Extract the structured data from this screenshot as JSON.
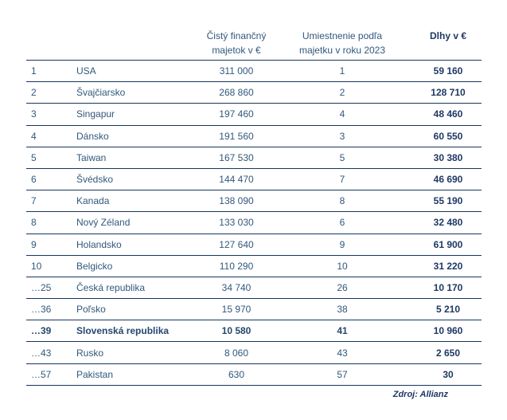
{
  "header": {
    "assets_line1": "Čistý finančný",
    "assets_line2": "majetok v €",
    "place_line1": "Umiestnenie podľa",
    "place_line2": "majetku v roku 2023",
    "debt": "Dlhy v €"
  },
  "source": "Zdroj: Allianz",
  "colors": {
    "text_regular": "#31587C",
    "text_dark_navy": "#1F3864",
    "border": "#17365D",
    "background": "#FFFFFF"
  },
  "table": {
    "rows": [
      {
        "rank": "1",
        "country": "USA",
        "assets": "311 000",
        "place": "1",
        "debt": "59 160"
      },
      {
        "rank": "2",
        "country": "Švajčiarsko",
        "assets": "268 860",
        "place": "2",
        "debt": "128 710"
      },
      {
        "rank": "3",
        "country": "Singapur",
        "assets": "197 460",
        "place": "4",
        "debt": "48 460"
      },
      {
        "rank": "4",
        "country": "Dánsko",
        "assets": "191 560",
        "place": "3",
        "debt": "60 550"
      },
      {
        "rank": "5",
        "country": "Taiwan",
        "assets": "167 530",
        "place": "5",
        "debt": "30 380"
      },
      {
        "rank": "6",
        "country": "Švédsko",
        "assets": "144 470",
        "place": "7",
        "debt": "46 690"
      },
      {
        "rank": "7",
        "country": "Kanada",
        "assets": "138 090",
        "place": "8",
        "debt": "55 190"
      },
      {
        "rank": "8",
        "country": "Nový Zéland",
        "assets": "133 030",
        "place": "6",
        "debt": "32 480"
      },
      {
        "rank": "9",
        "country": "Holandsko",
        "assets": "127 640",
        "place": "9",
        "debt": "61 900"
      },
      {
        "rank": "10",
        "country": "Belgicko",
        "assets": "110 290",
        "place": "10",
        "debt": "31 220"
      },
      {
        "rank": "…25",
        "country": "Česká republika",
        "assets": "34 740",
        "place": "26",
        "debt": "10 170"
      },
      {
        "rank": "…36",
        "country": "Poľsko",
        "assets": "15 970",
        "place": "38",
        "debt": "5 210"
      },
      {
        "rank": "…39",
        "country": "Slovenská republika",
        "assets": "10 580",
        "place": "41",
        "debt": "10 960"
      },
      {
        "rank": "…43",
        "country": "Rusko",
        "assets": "8 060",
        "place": "43",
        "debt": "2 650"
      },
      {
        "rank": "…57",
        "country": "Pakistan",
        "assets": "630",
        "place": "57",
        "debt": "30"
      }
    ]
  },
  "chart_data": {
    "type": "table",
    "title": "",
    "columns": [
      "",
      "",
      "Čistý finančný majetok v €",
      "Umiestnenie podľa majetku v roku 2023",
      "Dlhy v €"
    ],
    "rows": [
      {
        "rank": 1,
        "country": "USA",
        "net_assets_eur": 311000,
        "place_2023": 1,
        "debt_eur": 59160
      },
      {
        "rank": 2,
        "country": "Švajčiarsko",
        "net_assets_eur": 268860,
        "place_2023": 2,
        "debt_eur": 128710
      },
      {
        "rank": 3,
        "country": "Singapur",
        "net_assets_eur": 197460,
        "place_2023": 4,
        "debt_eur": 48460
      },
      {
        "rank": 4,
        "country": "Dánsko",
        "net_assets_eur": 191560,
        "place_2023": 3,
        "debt_eur": 60550
      },
      {
        "rank": 5,
        "country": "Taiwan",
        "net_assets_eur": 167530,
        "place_2023": 5,
        "debt_eur": 30380
      },
      {
        "rank": 6,
        "country": "Švédsko",
        "net_assets_eur": 144470,
        "place_2023": 7,
        "debt_eur": 46690
      },
      {
        "rank": 7,
        "country": "Kanada",
        "net_assets_eur": 138090,
        "place_2023": 8,
        "debt_eur": 55190
      },
      {
        "rank": 8,
        "country": "Nový Zéland",
        "net_assets_eur": 133030,
        "place_2023": 6,
        "debt_eur": 32480
      },
      {
        "rank": 9,
        "country": "Holandsko",
        "net_assets_eur": 127640,
        "place_2023": 9,
        "debt_eur": 61900
      },
      {
        "rank": 10,
        "country": "Belgicko",
        "net_assets_eur": 110290,
        "place_2023": 10,
        "debt_eur": 31220
      },
      {
        "rank": 25,
        "country": "Česká republika",
        "net_assets_eur": 34740,
        "place_2023": 26,
        "debt_eur": 10170
      },
      {
        "rank": 36,
        "country": "Poľsko",
        "net_assets_eur": 15970,
        "place_2023": 38,
        "debt_eur": 5210
      },
      {
        "rank": 39,
        "country": "Slovenská republika",
        "net_assets_eur": 10580,
        "place_2023": 41,
        "debt_eur": 10960
      },
      {
        "rank": 43,
        "country": "Rusko",
        "net_assets_eur": 8060,
        "place_2023": 43,
        "debt_eur": 2650
      },
      {
        "rank": 57,
        "country": "Pakistan",
        "net_assets_eur": 630,
        "place_2023": 57,
        "debt_eur": 30
      }
    ],
    "highlighted_row": "Slovenská republika",
    "source": "Zdroj: Allianz"
  }
}
